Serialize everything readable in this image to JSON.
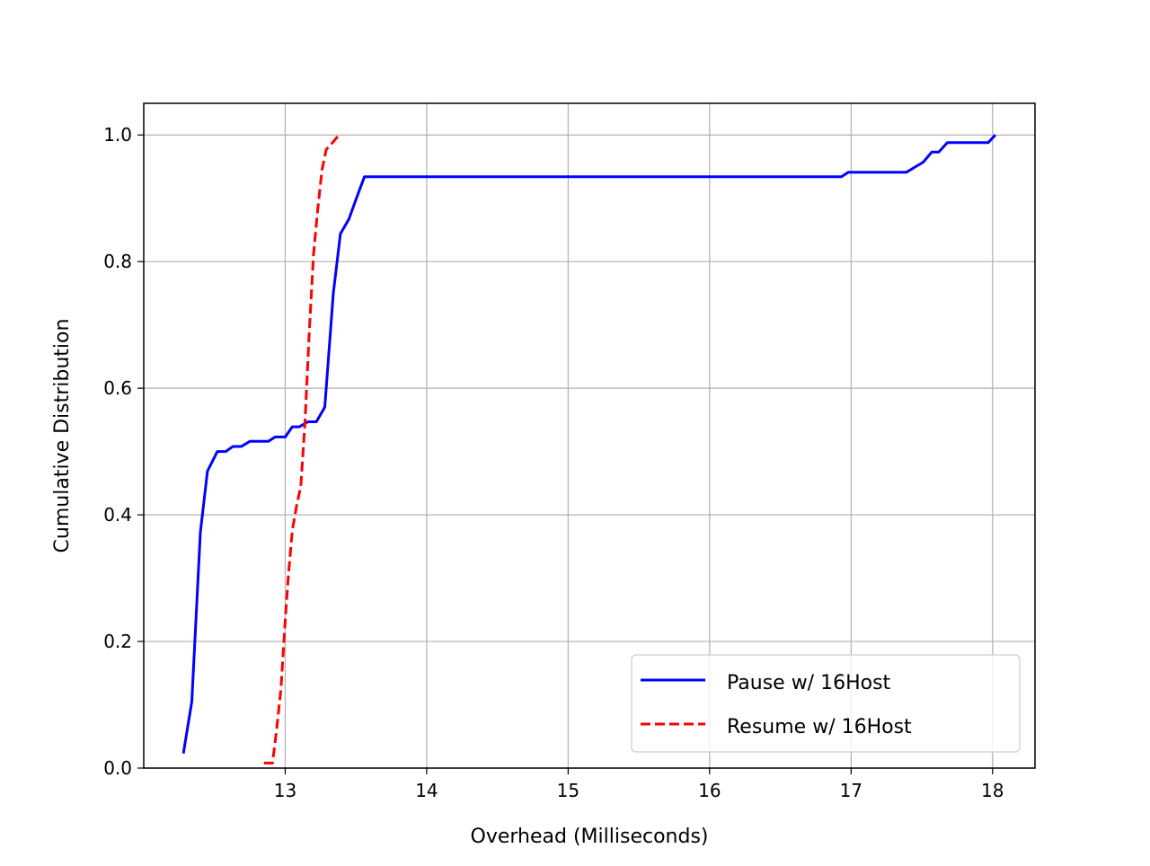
{
  "chart_data": {
    "type": "line",
    "title": "",
    "xlabel": "Overhead (Milliseconds)",
    "ylabel": "Cumulative Distribution",
    "xlim": [
      12.0,
      18.3
    ],
    "ylim": [
      0.0,
      1.05
    ],
    "xticks": [
      13,
      14,
      15,
      16,
      17,
      18
    ],
    "xtick_labels": [
      "13",
      "14",
      "15",
      "16",
      "17",
      "18"
    ],
    "yticks": [
      0.0,
      0.2,
      0.4,
      0.6,
      0.8,
      1.0
    ],
    "ytick_labels": [
      "0.0",
      "0.2",
      "0.4",
      "0.6",
      "0.8",
      "1.0"
    ],
    "grid": true,
    "legend_position": "lower-right",
    "series": [
      {
        "name": "Pause w/ 16Host",
        "color": "#0000ff",
        "dash": "solid",
        "x": [
          12.28,
          12.34,
          12.4,
          12.45,
          12.52,
          12.58,
          12.63,
          12.69,
          12.75,
          12.82,
          12.88,
          12.93,
          13.0,
          13.05,
          13.1,
          13.16,
          13.22,
          13.28,
          13.34,
          13.39,
          13.45,
          13.5,
          13.56,
          13.62,
          14.0,
          15.0,
          16.0,
          16.93,
          16.98,
          17.05,
          17.39,
          17.51,
          17.57,
          17.62,
          17.68,
          17.74,
          17.85,
          17.97,
          18.02
        ],
        "y": [
          0.023,
          0.105,
          0.372,
          0.469,
          0.5,
          0.5,
          0.508,
          0.508,
          0.516,
          0.516,
          0.516,
          0.523,
          0.523,
          0.539,
          0.539,
          0.547,
          0.547,
          0.57,
          0.75,
          0.844,
          0.867,
          0.898,
          0.934,
          0.934,
          0.934,
          0.934,
          0.934,
          0.934,
          0.941,
          0.941,
          0.941,
          0.957,
          0.973,
          0.973,
          0.988,
          0.988,
          0.988,
          0.988,
          1.0
        ]
      },
      {
        "name": "Resume w/ 16Host",
        "color": "#ff0000",
        "dash": "dashed",
        "x": [
          12.85,
          12.91,
          12.94,
          12.97,
          13.0,
          13.02,
          13.05,
          13.08,
          13.11,
          13.14,
          13.17,
          13.2,
          13.23,
          13.26,
          13.29,
          13.32,
          13.35,
          13.38
        ],
        "y": [
          0.008,
          0.008,
          0.062,
          0.125,
          0.234,
          0.297,
          0.375,
          0.414,
          0.445,
          0.547,
          0.688,
          0.812,
          0.883,
          0.945,
          0.977,
          0.984,
          0.992,
          1.0
        ]
      }
    ]
  }
}
